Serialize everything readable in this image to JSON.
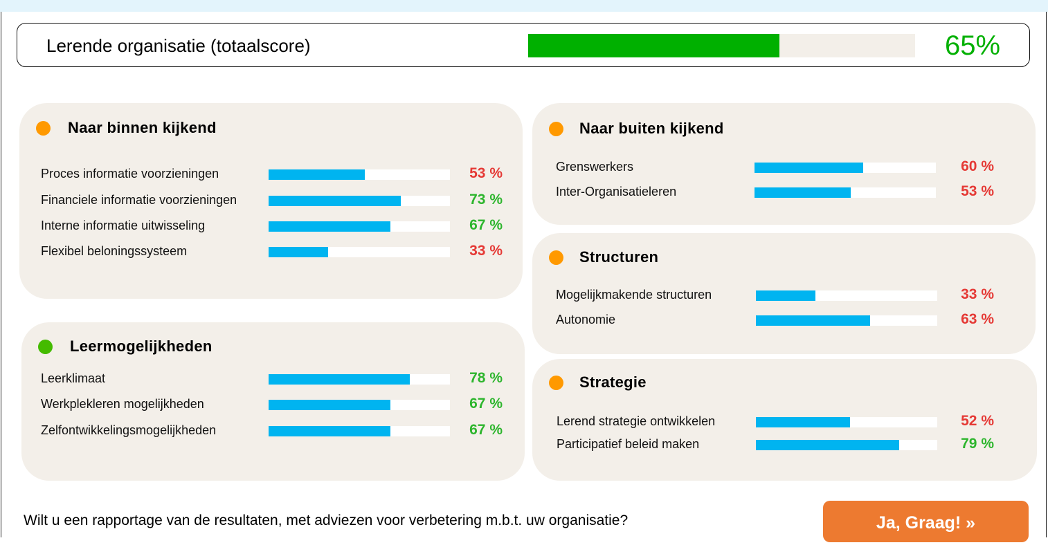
{
  "total": {
    "title": "Lerende organisatie (totaalscore)",
    "value": 65,
    "label": "65%",
    "color": "#00b000"
  },
  "colors": {
    "bar": "#00b4f0",
    "good": "#2db52d",
    "bad": "#e53935",
    "orange_dot": "#ff9900",
    "green_dot": "#44bb00",
    "card_bg": "#f3efe9"
  },
  "cards": [
    {
      "title": "Naar binnen kijkend",
      "dot": "orange",
      "items": [
        {
          "label": "Proces informatie voorzieningen",
          "value": 53,
          "pct": "53 %",
          "status": "bad"
        },
        {
          "label": "Financiele informatie voorzieningen",
          "value": 73,
          "pct": "73 %",
          "status": "good"
        },
        {
          "label": "Interne informatie uitwisseling",
          "value": 67,
          "pct": "67 %",
          "status": "good"
        },
        {
          "label": "Flexibel beloningssysteem",
          "value": 33,
          "pct": "33 %",
          "status": "bad"
        }
      ]
    },
    {
      "title": "Leermogelijkheden",
      "dot": "green",
      "items": [
        {
          "label": "Leerklimaat",
          "value": 78,
          "pct": "78 %",
          "status": "good"
        },
        {
          "label": "Werkplekleren mogelijkheden",
          "value": 67,
          "pct": "67 %",
          "status": "good"
        },
        {
          "label": "Zelfontwikkelingsmogelijkheden",
          "value": 67,
          "pct": "67 %",
          "status": "good"
        }
      ]
    },
    {
      "title": "Naar buiten kijkend",
      "dot": "orange",
      "items": [
        {
          "label": "Grenswerkers",
          "value": 60,
          "pct": "60 %",
          "status": "bad"
        },
        {
          "label": "Inter-Organisatieleren",
          "value": 53,
          "pct": "53 %",
          "status": "bad"
        }
      ]
    },
    {
      "title": "Structuren",
      "dot": "orange",
      "items": [
        {
          "label": "Mogelijkmakende structuren",
          "value": 33,
          "pct": "33 %",
          "status": "bad"
        },
        {
          "label": "Autonomie",
          "value": 63,
          "pct": "63 %",
          "status": "bad"
        }
      ]
    },
    {
      "title": "Strategie",
      "dot": "orange",
      "items": [
        {
          "label": "Lerend strategie ontwikkelen",
          "value": 52,
          "pct": "52 %",
          "status": "bad"
        },
        {
          "label": "Participatief beleid maken",
          "value": 79,
          "pct": "79 %",
          "status": "good"
        }
      ]
    }
  ],
  "footer": {
    "question": "Wilt u een rapportage van de resultaten, met adviezen voor verbetering m.b.t. uw organisatie?",
    "button": "Ja, Graag! »"
  }
}
